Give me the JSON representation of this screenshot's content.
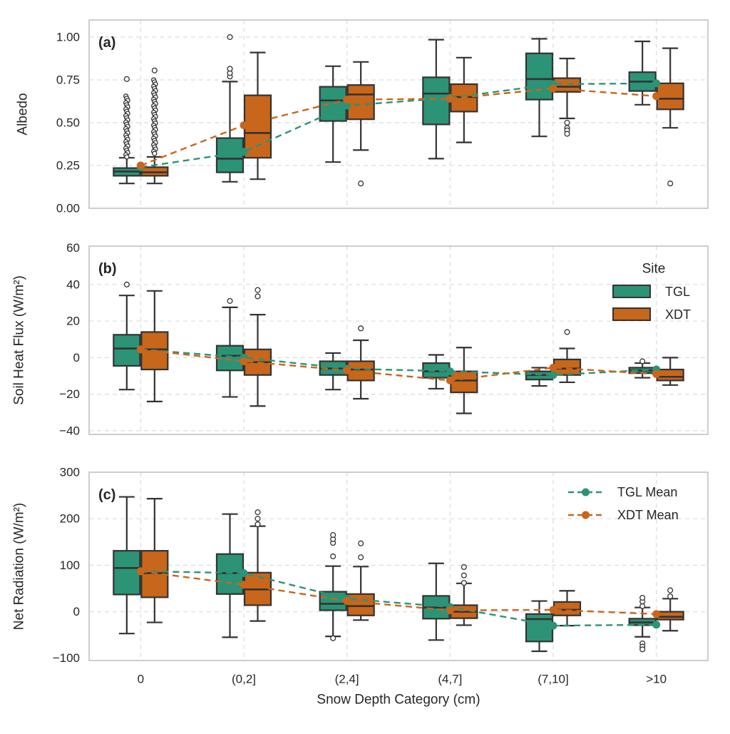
{
  "figure": {
    "xlabel": "Snow Depth Category (cm)",
    "categories": [
      "0",
      "(0,2]",
      "(2,4]",
      "(4,7]",
      "(7,10]",
      ">10"
    ],
    "sites": [
      {
        "name": "TGL",
        "color": "#2c9376"
      },
      {
        "name": "XDT",
        "color": "#c8661b"
      }
    ],
    "site_legend": {
      "title": "Site",
      "items": [
        "TGL",
        "XDT"
      ]
    },
    "mean_legend": {
      "items": [
        "TGL Mean",
        "XDT Mean"
      ]
    },
    "style": {
      "edge": "#333333",
      "grid": "#dcdcdc",
      "spine": "#c9c9c9",
      "text": "#262626",
      "outlier_fill": "#ffffff"
    }
  },
  "chart_data": [
    {
      "type": "box",
      "panel_label": "(a)",
      "ylabel": "Albedo",
      "ylim": [
        0,
        1.1
      ],
      "yticks": [
        0,
        0.25,
        0.5,
        0.75,
        1.0
      ],
      "tick_decimals": 2,
      "series": [
        {
          "site": "TGL",
          "boxes": [
            {
              "lo": 0.145,
              "q1": 0.19,
              "med": 0.215,
              "q3": 0.235,
              "hi": 0.295,
              "out": [
                0.755
              ],
              "band": {
                "min": 0.3,
                "max": 0.655
              }
            },
            {
              "lo": 0.155,
              "q1": 0.21,
              "med": 0.29,
              "q3": 0.41,
              "hi": 0.74,
              "out": [
                0.77,
                0.79,
                0.815,
                1.0
              ]
            },
            {
              "lo": 0.27,
              "q1": 0.51,
              "med": 0.63,
              "q3": 0.71,
              "hi": 0.83,
              "out": []
            },
            {
              "lo": 0.29,
              "q1": 0.49,
              "med": 0.67,
              "q3": 0.765,
              "hi": 0.985,
              "out": []
            },
            {
              "lo": 0.42,
              "q1": 0.635,
              "med": 0.755,
              "q3": 0.905,
              "hi": 0.99,
              "out": []
            },
            {
              "lo": 0.605,
              "q1": 0.685,
              "med": 0.74,
              "q3": 0.795,
              "hi": 0.975,
              "out": []
            }
          ],
          "means": [
            0.24,
            0.33,
            0.6,
            0.645,
            0.725,
            0.73
          ]
        },
        {
          "site": "XDT",
          "boxes": [
            {
              "lo": 0.145,
              "q1": 0.19,
              "med": 0.21,
              "q3": 0.24,
              "hi": 0.3,
              "out": [
                0.805
              ],
              "band": {
                "min": 0.32,
                "max": 0.75
              }
            },
            {
              "lo": 0.17,
              "q1": 0.295,
              "med": 0.44,
              "q3": 0.66,
              "hi": 0.91,
              "out": []
            },
            {
              "lo": 0.34,
              "q1": 0.52,
              "med": 0.665,
              "q3": 0.72,
              "hi": 0.855,
              "out": [
                0.145
              ]
            },
            {
              "lo": 0.385,
              "q1": 0.565,
              "med": 0.65,
              "q3": 0.725,
              "hi": 0.88,
              "out": []
            },
            {
              "lo": 0.525,
              "q1": 0.68,
              "med": 0.71,
              "q3": 0.76,
              "hi": 0.875,
              "out": [
                0.5,
                0.47,
                0.455,
                0.435
              ]
            },
            {
              "lo": 0.47,
              "q1": 0.578,
              "med": 0.64,
              "q3": 0.73,
              "hi": 0.935,
              "out": [
                0.145
              ]
            }
          ],
          "means": [
            0.25,
            0.485,
            0.635,
            0.64,
            0.7,
            0.655
          ]
        }
      ]
    },
    {
      "type": "box",
      "panel_label": "(b)",
      "ylabel": "Soil Heat Flux (W/m²)",
      "ylim": [
        -42,
        61
      ],
      "yticks": [
        -40,
        -20,
        0,
        20,
        40,
        60
      ],
      "tick_decimals": 0,
      "series": [
        {
          "site": "TGL",
          "boxes": [
            {
              "lo": -17.5,
              "q1": -4.5,
              "med": 5,
              "q3": 12.5,
              "hi": 34,
              "out": [
                40
              ]
            },
            {
              "lo": -21.5,
              "q1": -7,
              "med": 1,
              "q3": 6.5,
              "hi": 27.5,
              "out": [
                31
              ]
            },
            {
              "lo": -17.5,
              "q1": -9.5,
              "med": -6,
              "q3": -2,
              "hi": 2.5,
              "out": []
            },
            {
              "lo": -17,
              "q1": -11,
              "med": -7.5,
              "q3": -3,
              "hi": 1.5,
              "out": []
            },
            {
              "lo": -15.5,
              "q1": -12,
              "med": -9.5,
              "q3": -7.5,
              "hi": -5.5,
              "out": []
            },
            {
              "lo": -11,
              "q1": -8.5,
              "med": -7,
              "q3": -5.5,
              "hi": -3,
              "out": [
                -2
              ]
            }
          ],
          "means": [
            4.5,
            0,
            -6,
            -7.5,
            -9.5,
            -6.5
          ]
        },
        {
          "site": "XDT",
          "boxes": [
            {
              "lo": -24,
              "q1": -6.5,
              "med": 4.5,
              "q3": 14,
              "hi": 36.5,
              "out": []
            },
            {
              "lo": -26.5,
              "q1": -9.5,
              "med": -2.5,
              "q3": 4.5,
              "hi": 23.5,
              "out": [
                33.5,
                37
              ]
            },
            {
              "lo": -22.5,
              "q1": -12.5,
              "med": -6.5,
              "q3": -2,
              "hi": 9.5,
              "out": [
                16
              ]
            },
            {
              "lo": -30.5,
              "q1": -19,
              "med": -12.5,
              "q3": -7.5,
              "hi": 5.5,
              "out": []
            },
            {
              "lo": -13.5,
              "q1": -9.5,
              "med": -6,
              "q3": -1,
              "hi": 5,
              "out": [
                14
              ]
            },
            {
              "lo": -15,
              "q1": -12.5,
              "med": -10.5,
              "q3": -6.5,
              "hi": 0,
              "out": []
            }
          ],
          "means": [
            4.5,
            -2,
            -7,
            -12.5,
            -5.5,
            -9
          ]
        }
      ]
    },
    {
      "type": "box",
      "panel_label": "(c)",
      "ylabel": "Net Radiation (W/m²)",
      "ylim": [
        -105,
        300
      ],
      "yticks": [
        -100,
        0,
        100,
        200,
        300
      ],
      "tick_decimals": 0,
      "series": [
        {
          "site": "TGL",
          "boxes": [
            {
              "lo": -47,
              "q1": 37,
              "med": 94,
              "q3": 131,
              "hi": 247,
              "out": []
            },
            {
              "lo": -55,
              "q1": 38,
              "med": 83,
              "q3": 124,
              "hi": 210,
              "out": []
            },
            {
              "lo": -53,
              "q1": 3,
              "med": 17,
              "q3": 43,
              "hi": 98,
              "out": [
                119,
                148,
                156,
                165,
                -57
              ]
            },
            {
              "lo": -61,
              "q1": -15,
              "med": 9,
              "q3": 34,
              "hi": 104,
              "out": []
            },
            {
              "lo": -85,
              "q1": -64,
              "med": -16,
              "q3": -5,
              "hi": 23,
              "out": []
            },
            {
              "lo": -54,
              "q1": -29,
              "med": -23,
              "q3": -15,
              "hi": 9,
              "out": [
                12,
                22,
                30,
                -68,
                -75,
                -81
              ]
            }
          ],
          "means": [
            87,
            83,
            28,
            10,
            -30,
            -28
          ]
        },
        {
          "site": "XDT",
          "boxes": [
            {
              "lo": -23,
              "q1": 31,
              "med": 83,
              "q3": 131,
              "hi": 243,
              "out": []
            },
            {
              "lo": -20,
              "q1": 14,
              "med": 48,
              "q3": 84,
              "hi": 184,
              "out": [
                188,
                200,
                214
              ]
            },
            {
              "lo": -18,
              "q1": -8,
              "med": 12,
              "q3": 38,
              "hi": 97,
              "out": [
                117,
                147
              ]
            },
            {
              "lo": -29,
              "q1": -14,
              "med": 0,
              "q3": 14,
              "hi": 61,
              "out": [
                62,
                78,
                96
              ]
            },
            {
              "lo": -30,
              "q1": -8,
              "med": 4,
              "q3": 21,
              "hi": 45,
              "out": []
            },
            {
              "lo": -41,
              "q1": -17,
              "med": -11,
              "q3": 0,
              "hi": 28,
              "out": [
                33,
                46
              ]
            }
          ],
          "means": [
            87,
            58,
            23,
            3,
            4,
            -5
          ]
        }
      ]
    }
  ]
}
